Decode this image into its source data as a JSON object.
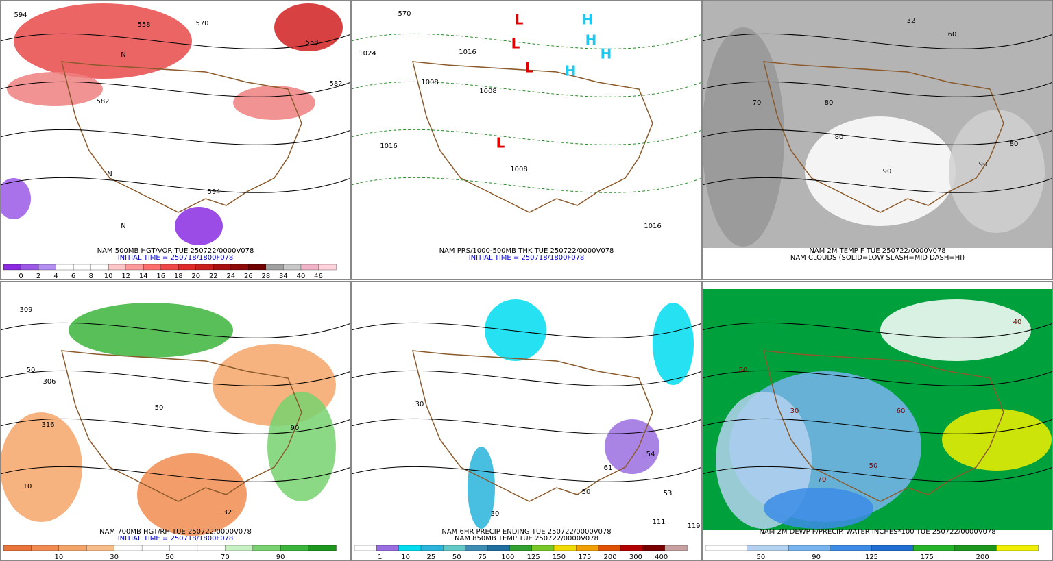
{
  "panels": [
    {
      "captions": [
        "NAM 500MB HGT/VOR TUE 250722/0000V078",
        "INITIAL TIME = 250718/1800F078"
      ],
      "background": "#ffffff",
      "map_labels": [
        "594",
        "558",
        "570",
        "582",
        "582",
        "558",
        "594",
        "N",
        "N",
        "N"
      ],
      "colorbar": {
        "colors": [
          "#8a2be2",
          "#9b59e6",
          "#b48ef0",
          "#ffffff",
          "#ffffff",
          "#ffffff",
          "#ffc8c8",
          "#ff9a9a",
          "#ff6e6e",
          "#f04848",
          "#e02a2a",
          "#c81e1e",
          "#a81010",
          "#8c0a0a",
          "#700000",
          "#a0a0a0",
          "#c8c8c8",
          "#f0b4c8",
          "#ffd2dc"
        ],
        "labels": [
          "0",
          "2",
          "4",
          "6",
          "8",
          "10",
          "12",
          "14",
          "16",
          "18",
          "20",
          "22",
          "24",
          "26",
          "28",
          "34",
          "40",
          "46"
        ]
      }
    },
    {
      "captions": [
        "NAM PRS/1000-500MB THK TUE 250722/0000V078",
        "INITIAL TIME = 250718/1800F078"
      ],
      "background": "#ffffff",
      "map_labels": [
        "570",
        "1024",
        "1016",
        "1008",
        "1008",
        "1008",
        "1016",
        "1016",
        "L",
        "L",
        "L",
        "L",
        "H",
        "H",
        "H",
        "H"
      ],
      "colorbar": null
    },
    {
      "captions": [
        "NAM 2M TEMP F TUE 250722/0000V078",
        "NAM CLOUDS (SOLID=LOW SLASH=MID DASH=HI)"
      ],
      "background": "#b4b4b4",
      "map_labels": [
        "32",
        "60",
        "80",
        "90",
        "90",
        "80",
        "80",
        "70"
      ],
      "colorbar": null
    },
    {
      "captions": [
        "NAM 700MB HGT/RH TUE 250722/0000V078",
        "INITIAL TIME = 250718/1800F078"
      ],
      "background": "#ffffff",
      "map_labels": [
        "309",
        "306",
        "316",
        "321",
        "50",
        "90",
        "10",
        "50"
      ],
      "colorbar": {
        "colors": [
          "#e8743a",
          "#f08c50",
          "#f4a468",
          "#f8bc88",
          "#ffffff",
          "#ffffff",
          "#ffffff",
          "#ffffff",
          "#c8f0c0",
          "#78d270",
          "#3cb43c",
          "#1e961e"
        ],
        "labels": [
          "10",
          "30",
          "50",
          "70",
          "90"
        ]
      }
    },
    {
      "captions": [
        "NAM 6HR PRECIP ENDING TUE 250722/0000V078",
        "NAM 850MB TEMP TUE 250722/0000V078"
      ],
      "background": "#ffffff",
      "map_labels": [
        "30",
        "30",
        "54",
        "61",
        "50",
        "53",
        "111",
        "119"
      ],
      "colorbar": {
        "colors": [
          "#ffffff",
          "#9b6ee0",
          "#00dcf0",
          "#28b4dc",
          "#64c8c8",
          "#3c8cb4",
          "#1e6ea0",
          "#30a030",
          "#78c828",
          "#f0dc00",
          "#f0a000",
          "#e05000",
          "#b40000",
          "#780000",
          "#c8a0a0"
        ],
        "labels": [
          "1",
          "10",
          "25",
          "50",
          "75",
          "100",
          "125",
          "150",
          "175",
          "200",
          "300",
          "400"
        ]
      }
    },
    {
      "captions": [
        "NAM 2M DEWP F/PRECIP. WATER INCHES*100 TUE 250722/0000V078"
      ],
      "background": "#00a03c",
      "map_labels": [
        "40",
        "50",
        "60",
        "50",
        "30",
        "70"
      ],
      "colorbar": {
        "colors": [
          "#ffffff",
          "#b4d2f0",
          "#78b4f0",
          "#3c8ce6",
          "#1e6ed2",
          "#28b428",
          "#1e961e",
          "#f0f000"
        ],
        "labels": [
          "50",
          "90",
          "125",
          "175",
          "200"
        ]
      }
    }
  ]
}
